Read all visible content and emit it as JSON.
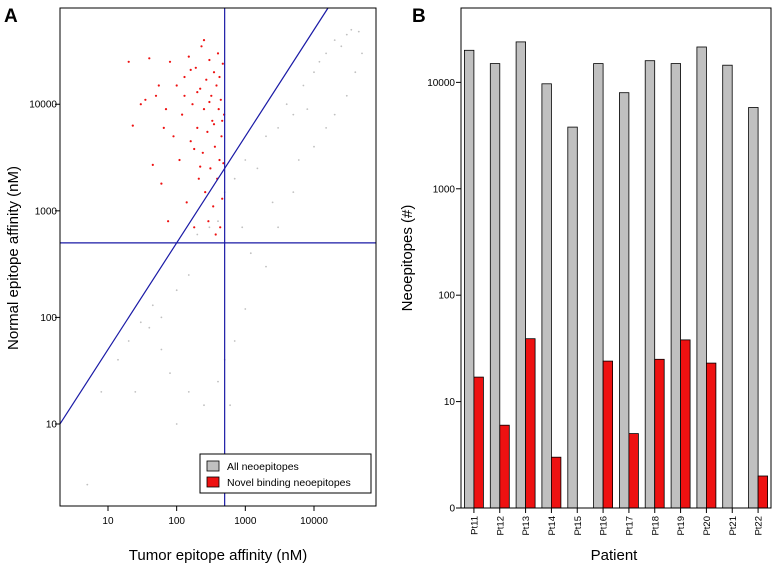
{
  "colors": {
    "all": "#c0c0c0",
    "novel": "#ee1111",
    "line": "#1a1aa6",
    "axis": "#000000"
  },
  "chart_data": [
    {
      "panel_label": "A",
      "type": "scatter",
      "xlabel": "Tumor epitope affinity (nM)",
      "ylabel": "Normal epitope affinity (nM)",
      "x_scale": "log",
      "y_scale": "log",
      "xlim": [
        2,
        80000
      ],
      "ylim": [
        1.7,
        80000
      ],
      "x_ticks": [
        {
          "value": 10,
          "label": "10"
        },
        {
          "value": 100,
          "label": "100"
        },
        {
          "value": 1000,
          "label": "1000"
        },
        {
          "value": 10000,
          "label": "10000"
        }
      ],
      "y_ticks": [
        {
          "value": 10,
          "label": "10"
        },
        {
          "value": 100,
          "label": "100"
        },
        {
          "value": 1000,
          "label": "1000"
        },
        {
          "value": 10000,
          "label": "10000"
        }
      ],
      "reference_lines": [
        {
          "kind": "vertical",
          "x": 500
        },
        {
          "kind": "horizontal",
          "y": 500
        },
        {
          "kind": "diagonal",
          "from": [
            1,
            5
          ],
          "to": [
            25000,
            125000
          ]
        }
      ],
      "legend": {
        "position": "bottom-right",
        "entries": [
          {
            "label": "All neoepitopes",
            "color": "#c0c0c0"
          },
          {
            "label": "Novel binding neoepitopes",
            "color": "#ee1111"
          }
        ]
      },
      "series": [
        {
          "name": "All neoepitopes",
          "color": "#c0c0c0",
          "density": "dense band along the diagonal, saturated between 10000 and 50000 nM on both axes, plus a sparse cloud below the diagonal",
          "points": [
            [
              5,
              2.7
            ],
            [
              8,
              20
            ],
            [
              14,
              40
            ],
            [
              20,
              60
            ],
            [
              30,
              90
            ],
            [
              45,
              130
            ],
            [
              60,
              50
            ],
            [
              80,
              30
            ],
            [
              100,
              180
            ],
            [
              150,
              250
            ],
            [
              200,
              600
            ],
            [
              300,
              700
            ],
            [
              400,
              800
            ],
            [
              500,
              1500
            ],
            [
              700,
              2000
            ],
            [
              1000,
              3000
            ],
            [
              1500,
              2500
            ],
            [
              2000,
              5000
            ],
            [
              3000,
              6000
            ],
            [
              4000,
              10000
            ],
            [
              5000,
              8000
            ],
            [
              7000,
              15000
            ],
            [
              10000,
              20000
            ],
            [
              15000,
              30000
            ],
            [
              20000,
              40000
            ],
            [
              30000,
              45000
            ],
            [
              45000,
              48000
            ],
            [
              40000,
              20000
            ],
            [
              30000,
              12000
            ],
            [
              20000,
              8000
            ],
            [
              10000,
              4000
            ],
            [
              5000,
              1500
            ],
            [
              3000,
              700
            ],
            [
              2000,
              300
            ],
            [
              1000,
              120
            ],
            [
              700,
              60
            ],
            [
              400,
              25
            ],
            [
              250,
              15
            ],
            [
              150,
              20
            ],
            [
              900,
              700
            ],
            [
              1200,
              400
            ],
            [
              2500,
              1200
            ],
            [
              6000,
              3000
            ],
            [
              8000,
              9000
            ],
            [
              12000,
              25000
            ],
            [
              25000,
              35000
            ],
            [
              35000,
              50000
            ],
            [
              50000,
              30000
            ],
            [
              15000,
              6000
            ],
            [
              500,
              40
            ],
            [
              600,
              15
            ],
            [
              300,
              5
            ],
            [
              100,
              10
            ],
            [
              60,
              100
            ],
            [
              40,
              80
            ],
            [
              25,
              20
            ]
          ]
        },
        {
          "name": "Novel binding neoepitopes",
          "color": "#ee1111",
          "points": [
            [
              20,
              25000
            ],
            [
              23,
              6300
            ],
            [
              30,
              10000
            ],
            [
              35,
              11000
            ],
            [
              40,
              27000
            ],
            [
              45,
              2700
            ],
            [
              50,
              12000
            ],
            [
              55,
              15000
            ],
            [
              60,
              1800
            ],
            [
              65,
              6000
            ],
            [
              70,
              9000
            ],
            [
              75,
              800
            ],
            [
              80,
              25000
            ],
            [
              90,
              5000
            ],
            [
              100,
              15000
            ],
            [
              110,
              3000
            ],
            [
              120,
              8000
            ],
            [
              130,
              18000
            ],
            [
              140,
              1200
            ],
            [
              150,
              28000
            ],
            [
              160,
              4500
            ],
            [
              170,
              10000
            ],
            [
              180,
              700
            ],
            [
              190,
              22000
            ],
            [
              200,
              6000
            ],
            [
              210,
              2000
            ],
            [
              220,
              14000
            ],
            [
              230,
              35000
            ],
            [
              240,
              3500
            ],
            [
              250,
              9000
            ],
            [
              260,
              1500
            ],
            [
              270,
              17000
            ],
            [
              280,
              5500
            ],
            [
              290,
              800
            ],
            [
              300,
              26000
            ],
            [
              310,
              2500
            ],
            [
              320,
              12000
            ],
            [
              330,
              7000
            ],
            [
              340,
              1100
            ],
            [
              350,
              20000
            ],
            [
              360,
              4000
            ],
            [
              370,
              600
            ],
            [
              380,
              15000
            ],
            [
              390,
              2000
            ],
            [
              400,
              30000
            ],
            [
              410,
              9000
            ],
            [
              420,
              3000
            ],
            [
              430,
              700
            ],
            [
              440,
              11000
            ],
            [
              450,
              5000
            ],
            [
              460,
              1300
            ],
            [
              470,
              24000
            ],
            [
              480,
              2800
            ],
            [
              490,
              8000
            ],
            [
              130,
              12000
            ],
            [
              160,
              21000
            ],
            [
              200,
              13000
            ],
            [
              250,
              40000
            ],
            [
              300,
              10500
            ],
            [
              350,
              6500
            ],
            [
              420,
              18000
            ],
            [
              460,
              7000
            ],
            [
              180,
              3800
            ],
            [
              220,
              2600
            ]
          ]
        }
      ]
    },
    {
      "panel_label": "B",
      "type": "bar",
      "xlabel": "Patient",
      "ylabel": "Neoepitopes (#)",
      "y_scale": "log",
      "ylim": [
        1,
        50000
      ],
      "y_ticks": [
        {
          "value": 1,
          "label": "0"
        },
        {
          "value": 10,
          "label": "10"
        },
        {
          "value": 100,
          "label": "100"
        },
        {
          "value": 1000,
          "label": "1000"
        },
        {
          "value": 10000,
          "label": "10000"
        }
      ],
      "categories": [
        "Pt11",
        "Pt12",
        "Pt13",
        "Pt14",
        "Pt15",
        "Pt16",
        "Pt17",
        "Pt18",
        "Pt19",
        "Pt20",
        "Pt21",
        "Pt22"
      ],
      "series": [
        {
          "name": "All neoepitopes",
          "color": "#c0c0c0",
          "values": [
            20000,
            15000,
            24000,
            9700,
            3800,
            15000,
            8000,
            16000,
            15000,
            21500,
            14500,
            5800
          ]
        },
        {
          "name": "Novel binding neoepitopes",
          "color": "#ee1111",
          "values": [
            17,
            6,
            39,
            3,
            0,
            24,
            5,
            25,
            38,
            23,
            0,
            2
          ]
        }
      ]
    }
  ]
}
